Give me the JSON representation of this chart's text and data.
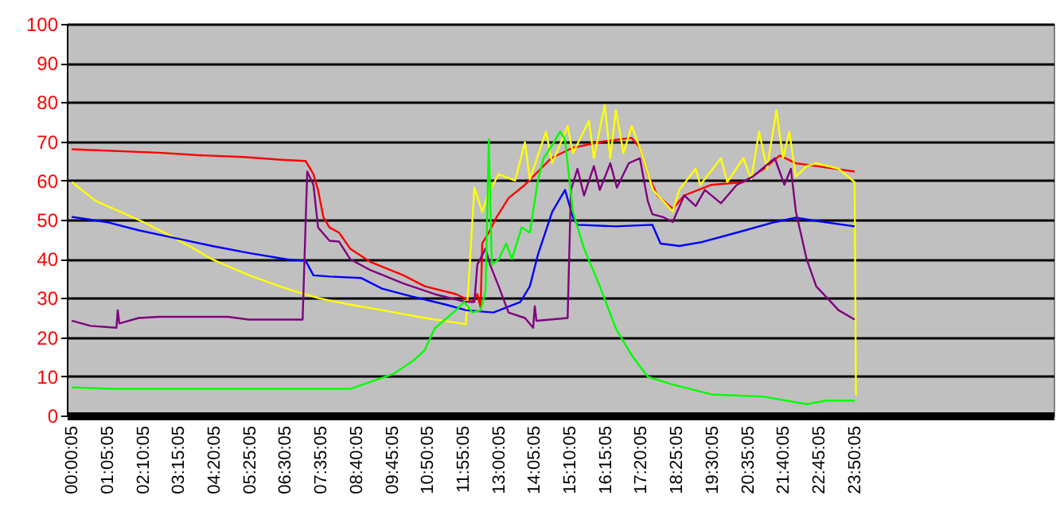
{
  "chart_data": {
    "type": "line",
    "xlim": [
      -0.15,
      29.9
    ],
    "ylim": [
      0,
      100
    ],
    "yticks": [
      0,
      10,
      20,
      30,
      40,
      50,
      60,
      70,
      80,
      90,
      100
    ],
    "grid": "y",
    "line_style": "solid",
    "marker": "none",
    "xticks": [
      {
        "value": 0.00139,
        "label": "00:00:05"
      },
      {
        "value": 1.08472,
        "label": "01:05:05"
      },
      {
        "value": 2.16806,
        "label": "02:10:05"
      },
      {
        "value": 3.25139,
        "label": "03:15:05"
      },
      {
        "value": 4.33472,
        "label": "04:20:05"
      },
      {
        "value": 5.41806,
        "label": "05:25:05"
      },
      {
        "value": 6.50139,
        "label": "06:30:05"
      },
      {
        "value": 7.58472,
        "label": "07:35:05"
      },
      {
        "value": 8.66806,
        "label": "08:40:05"
      },
      {
        "value": 9.75139,
        "label": "09:45:05"
      },
      {
        "value": 10.83472,
        "label": "10:50:05"
      },
      {
        "value": 11.91806,
        "label": "11:55:05"
      },
      {
        "value": 13.00139,
        "label": "13:00:05"
      },
      {
        "value": 14.08472,
        "label": "14:05:05"
      },
      {
        "value": 15.16806,
        "label": "15:10:05"
      },
      {
        "value": 16.25139,
        "label": "16:15:05"
      },
      {
        "value": 17.33472,
        "label": "17:20:05"
      },
      {
        "value": 18.41806,
        "label": "18:25:05"
      },
      {
        "value": 19.50139,
        "label": "19:30:05"
      },
      {
        "value": 20.58472,
        "label": "20:35:05"
      },
      {
        "value": 21.66806,
        "label": "21:40:05"
      },
      {
        "value": 22.75139,
        "label": "22:45:05"
      },
      {
        "value": 23.83472,
        "label": "23:50:05"
      }
    ],
    "series": [
      {
        "color": "#ff0000",
        "x": [
          0,
          2.66,
          3.78,
          5.23,
          6.4,
          7.12,
          7.36,
          7.5,
          7.66,
          7.85,
          8.14,
          8.48,
          9.1,
          10.1,
          10.75,
          11.7,
          12.2,
          12.35,
          12.45,
          12.5,
          12.7,
          12.94,
          13.3,
          13.8,
          14.6,
          15.26,
          16.2,
          17.05,
          17.3,
          17.54,
          17.83,
          18.3,
          18.65,
          19.48,
          20.45,
          21.08,
          21.56,
          22.05,
          22.67,
          23.84
        ],
        "values": [
          68,
          67.1,
          66.5,
          66,
          65.3,
          65,
          61.6,
          57.6,
          50.7,
          48,
          46.7,
          42.6,
          39.2,
          35.8,
          33,
          31,
          29,
          31,
          27.6,
          44,
          46.7,
          50.7,
          55.5,
          58.9,
          65.7,
          68.4,
          70,
          70.9,
          68.4,
          61.6,
          56.2,
          52.8,
          56.2,
          58.9,
          59.6,
          63,
          66.4,
          64.4,
          63.7,
          62.3
        ]
      },
      {
        "color": "#ffff00",
        "x": [
          0,
          0.73,
          2.18,
          3.15,
          4.27,
          5.4,
          6.54,
          7.5,
          8.48,
          9.45,
          10.75,
          11.87,
          12.0,
          12.1,
          12.26,
          12.5,
          12.7,
          13.0,
          13.5,
          13.8,
          13.95,
          14.44,
          14.63,
          15.1,
          15.26,
          15.75,
          15.9,
          16.23,
          16.4,
          16.57,
          16.8,
          17.05,
          17.3,
          17.7,
          18.3,
          18.5,
          19.0,
          19.14,
          19.77,
          19.96,
          20.45,
          20.69,
          20.93,
          21.17,
          21.46,
          21.66,
          21.85,
          22.05,
          22.38,
          22.67,
          23.35,
          23.84,
          23.88
        ],
        "values": [
          59.6,
          54.8,
          49.4,
          45.3,
          39.9,
          35.8,
          32.4,
          30,
          28.3,
          26.9,
          24.9,
          23.5,
          23.3,
          35.8,
          58.2,
          52,
          57,
          61.6,
          60,
          69.8,
          60.3,
          72.5,
          64.4,
          73.9,
          67,
          75.2,
          65.7,
          79.3,
          65.7,
          78,
          67,
          73.9,
          68.4,
          57.6,
          52.1,
          57.6,
          63,
          58.9,
          65.7,
          59.6,
          65.7,
          60.3,
          72.5,
          63,
          78,
          65.7,
          72.5,
          61,
          63.7,
          64.4,
          63,
          59.6,
          5.2
        ]
      },
      {
        "color": "#0000ff",
        "x": [
          0,
          1.06,
          2.03,
          3.15,
          4.27,
          5.4,
          6.54,
          7.12,
          7.36,
          7.85,
          8.82,
          9.45,
          10.4,
          11.4,
          12.0,
          12.84,
          13.66,
          13.95,
          14.2,
          14.63,
          15.02,
          15.26,
          15.4,
          16.57,
          17.68,
          17.93,
          18.5,
          19.14,
          20.25,
          21.41,
          22.05,
          22.67,
          23.84
        ],
        "values": [
          50.7,
          49.4,
          47.3,
          45.3,
          43.3,
          41.5,
          39.9,
          39.5,
          35.8,
          35.5,
          35.1,
          32.4,
          30.3,
          28.3,
          26.9,
          26.3,
          29,
          33,
          41.2,
          52,
          57.6,
          50.7,
          48.7,
          48.3,
          48.7,
          43.9,
          43.3,
          44.2,
          46.7,
          49.4,
          50.5,
          49.7,
          48.3
        ]
      },
      {
        "color": "#800080",
        "x": [
          0,
          0.57,
          1.36,
          1.4,
          1.45,
          2.03,
          2.66,
          4.75,
          5.4,
          7.03,
          7.17,
          7.36,
          7.5,
          7.85,
          8.14,
          8.48,
          9.1,
          10.1,
          11.05,
          12.0,
          12.26,
          12.35,
          12.6,
          12.74,
          13.0,
          13.3,
          13.8,
          14.05,
          14.1,
          14.15,
          15.1,
          15.2,
          15.4,
          15.6,
          15.9,
          16.08,
          16.4,
          16.6,
          16.96,
          17.3,
          17.54,
          17.68,
          18.0,
          18.3,
          18.65,
          19.0,
          19.28,
          19.77,
          20.25,
          20.74,
          21.41,
          21.7,
          21.9,
          22.05,
          22.38,
          22.67,
          23.35,
          23.84
        ],
        "values": [
          24.2,
          22.9,
          22.4,
          26.9,
          23.5,
          24.9,
          25.2,
          25.2,
          24.5,
          24.5,
          62.3,
          58.9,
          48,
          44.6,
          44.4,
          39.9,
          37.1,
          33.7,
          31,
          29,
          29,
          38.5,
          42.6,
          38.5,
          33,
          26.3,
          24.9,
          22.4,
          27.9,
          24.2,
          24.9,
          57.6,
          63,
          56.2,
          63.7,
          57.6,
          64.4,
          58.2,
          64.4,
          65.7,
          54.8,
          51.4,
          50.7,
          49.4,
          56.2,
          53.5,
          57.6,
          54.2,
          58.9,
          61,
          65.7,
          58.9,
          63,
          52.1,
          39.9,
          33,
          26.9,
          24.5
        ]
      },
      {
        "color": "#00ff00",
        "x": [
          0,
          1.21,
          7.17,
          8.48,
          9.1,
          9.79,
          10.4,
          10.75,
          11.05,
          11.7,
          11.95,
          12.2,
          12.45,
          12.6,
          12.7,
          12.79,
          13.0,
          13.23,
          13.4,
          13.7,
          13.95,
          14.2,
          14.37,
          14.63,
          14.87,
          15.02,
          15.17,
          15.26,
          15.6,
          16.08,
          16.57,
          17.05,
          17.54,
          18.3,
          19.48,
          21.08,
          22.38,
          23.0,
          23.84
        ],
        "values": [
          7.2,
          6.8,
          6.8,
          6.8,
          8.6,
          10.6,
          14,
          16.7,
          22.2,
          26.9,
          29,
          26.3,
          26.9,
          31.7,
          70.5,
          38.5,
          39.9,
          43.9,
          39.9,
          48,
          46.7,
          60.3,
          65.7,
          69.1,
          72.5,
          70.5,
          58.9,
          52.1,
          42.6,
          33,
          22.2,
          15.4,
          9.9,
          7.9,
          5.4,
          4.8,
          2.9,
          3.8,
          3.8
        ]
      }
    ]
  }
}
